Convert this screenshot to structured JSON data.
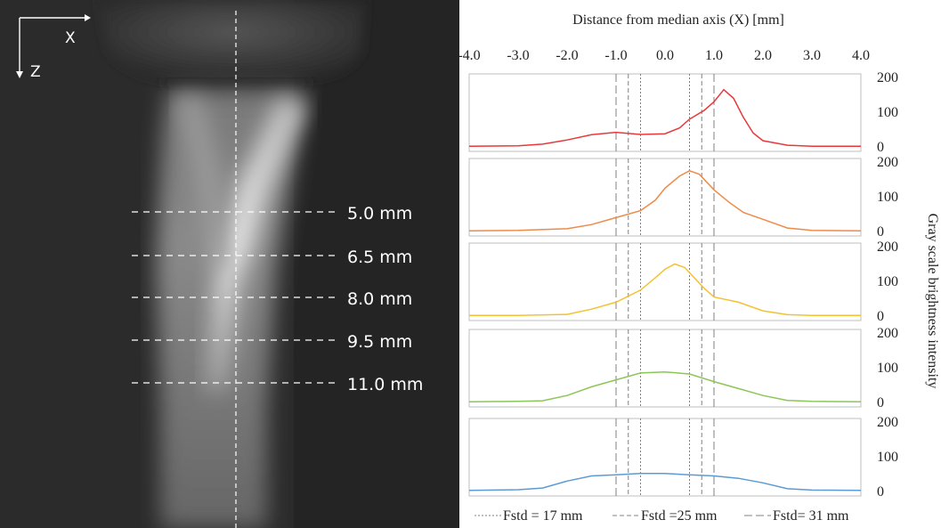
{
  "photo": {
    "axis_x_label": "X",
    "axis_z_label": "Z",
    "depth_labels": [
      "5.0 mm",
      "6.5 mm",
      "8.0 mm",
      "9.5 mm",
      "11.0 mm"
    ]
  },
  "chart_data": {
    "type": "line",
    "title": "",
    "xlabel": "Distance from median axis (X) [mm]",
    "ylabel": "Gray scale brightness intensity",
    "xlim": [
      -4.0,
      4.0
    ],
    "x_ticks": [
      "-4.0",
      "-3.0",
      "-2.0",
      "-1.0",
      "0.0",
      "1.0",
      "2.0",
      "3.0",
      "4.0"
    ],
    "ylim": [
      0,
      200
    ],
    "y_ticks": [
      "0",
      "100",
      "200"
    ],
    "grid": false,
    "legend_position": "bottom",
    "legend": [
      "Fstd = 17 mm",
      "Fstd =25 mm",
      "Fstd= 31 mm"
    ],
    "reference_lines": [
      {
        "name": "Fstd = 17 mm",
        "x": [
          -0.5,
          0.5
        ],
        "style": "dotted"
      },
      {
        "name": "Fstd =25 mm",
        "x": [
          -0.75,
          0.75
        ],
        "style": "dashed"
      },
      {
        "name": "Fstd= 31 mm",
        "x": [
          -1.0,
          1.0
        ],
        "style": "long-dashed"
      }
    ],
    "series": [
      {
        "color": "#e8393a",
        "x": [
          -4.0,
          -3.0,
          -2.5,
          -2.0,
          -1.5,
          -1.0,
          -0.5,
          0.0,
          0.3,
          0.5,
          0.8,
          1.0,
          1.2,
          1.4,
          1.6,
          1.8,
          2.0,
          2.5,
          3.0,
          4.0
        ],
        "y": [
          2,
          3,
          8,
          20,
          35,
          42,
          36,
          38,
          55,
          80,
          105,
          130,
          165,
          140,
          85,
          40,
          18,
          5,
          2,
          2
        ]
      },
      {
        "color": "#ef8a48",
        "x": [
          -4.0,
          -3.0,
          -2.0,
          -1.5,
          -1.0,
          -0.5,
          -0.2,
          0.0,
          0.3,
          0.5,
          0.7,
          1.0,
          1.3,
          1.6,
          2.0,
          2.5,
          3.0,
          4.0
        ],
        "y": [
          2,
          3,
          8,
          20,
          40,
          60,
          90,
          125,
          160,
          175,
          165,
          120,
          85,
          55,
          35,
          10,
          3,
          2
        ]
      },
      {
        "color": "#f3c233",
        "x": [
          -4.0,
          -3.0,
          -2.0,
          -1.5,
          -1.0,
          -0.5,
          -0.2,
          0.0,
          0.2,
          0.4,
          0.6,
          0.8,
          1.0,
          1.5,
          2.0,
          2.5,
          3.0,
          4.0
        ],
        "y": [
          2,
          2,
          5,
          20,
          40,
          75,
          110,
          135,
          150,
          140,
          110,
          80,
          55,
          40,
          15,
          4,
          2,
          2
        ]
      },
      {
        "color": "#8cc658",
        "x": [
          -4.0,
          -3.0,
          -2.5,
          -2.0,
          -1.5,
          -1.0,
          -0.5,
          0.0,
          0.5,
          1.0,
          1.5,
          2.0,
          2.5,
          3.0,
          4.0
        ],
        "y": [
          2,
          3,
          5,
          20,
          45,
          65,
          85,
          88,
          82,
          60,
          40,
          20,
          6,
          3,
          2
        ]
      },
      {
        "color": "#5b9bd5",
        "x": [
          -4.0,
          -3.0,
          -2.5,
          -2.0,
          -1.5,
          -1.0,
          -0.5,
          0.0,
          0.5,
          1.0,
          1.5,
          2.0,
          2.5,
          3.0,
          4.0
        ],
        "y": [
          3,
          5,
          10,
          30,
          45,
          48,
          52,
          52,
          48,
          45,
          38,
          25,
          8,
          4,
          3
        ]
      }
    ]
  }
}
